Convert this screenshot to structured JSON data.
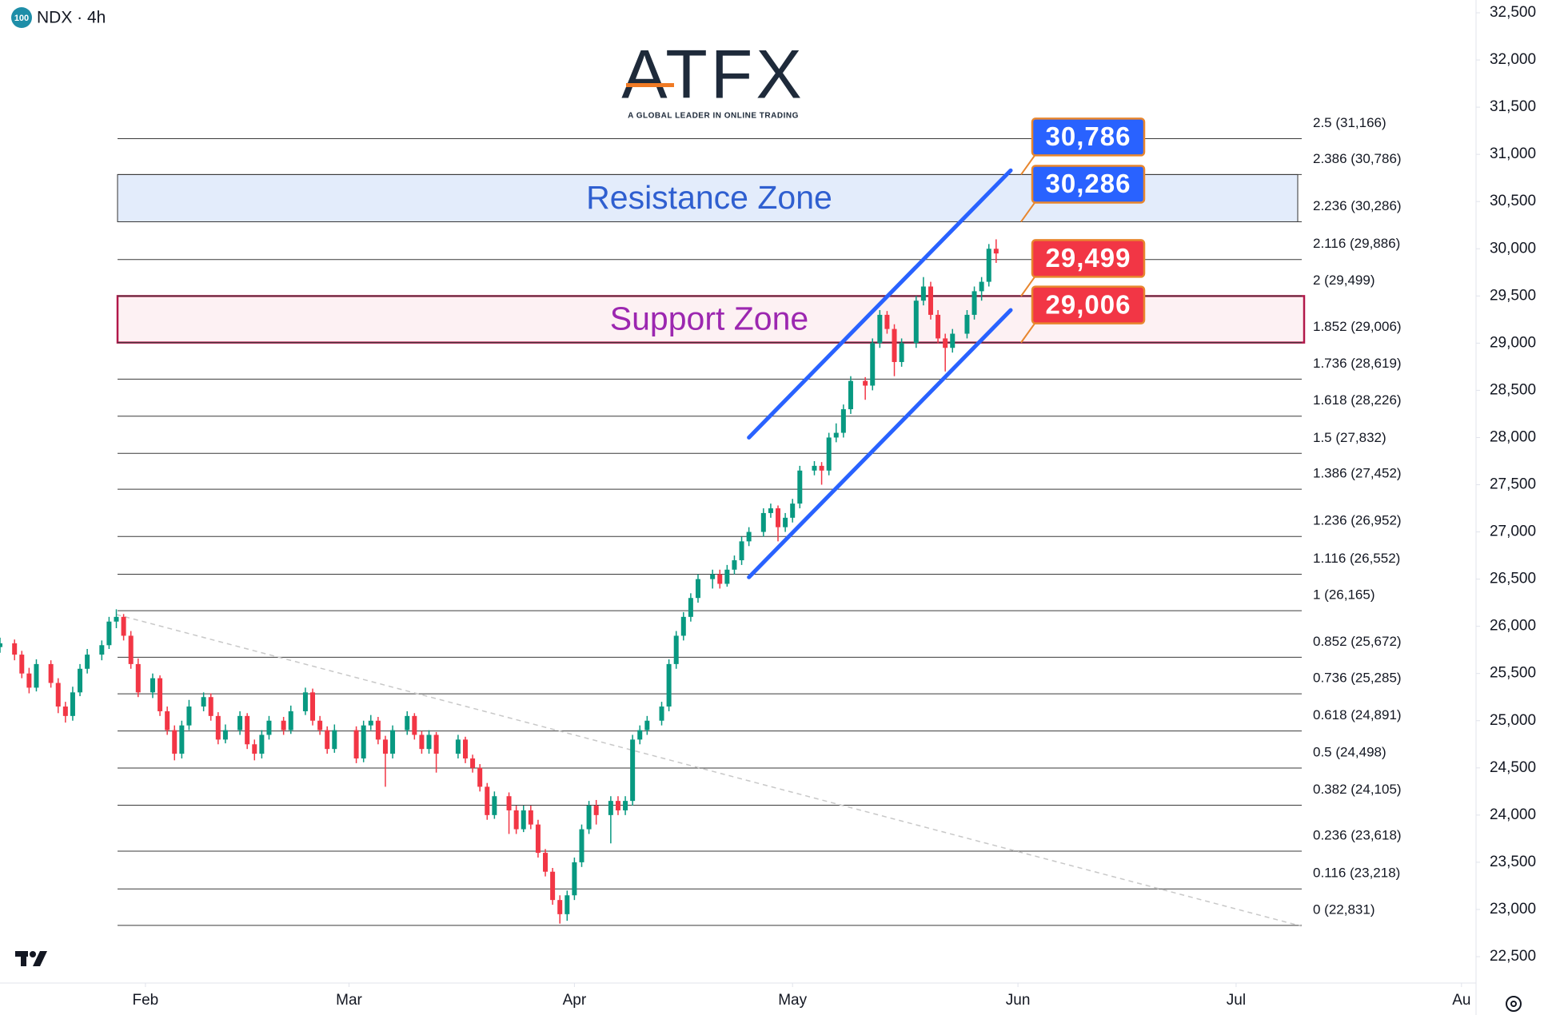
{
  "chart_data": {
    "type": "candlestick",
    "symbol_badge": "100",
    "title": "NDX · 4h",
    "logo": "ATFX",
    "logo_tagline": "A GLOBAL LEADER IN ONLINE TRADING",
    "up_color": "#089981",
    "down_color": "#f23645",
    "xlim": [
      12,
      215
    ],
    "xticks": [
      {
        "value": 32,
        "label": "Feb"
      },
      {
        "value": 60,
        "label": "Mar"
      },
      {
        "value": 91,
        "label": "Apr"
      },
      {
        "value": 121,
        "label": "May"
      },
      {
        "value": 152,
        "label": "Jun"
      },
      {
        "value": 182,
        "label": "Jul"
      },
      {
        "value": 213,
        "label": "Au"
      }
    ],
    "ylim": [
      22500,
      32500
    ],
    "yticks": [
      {
        "value": 22500,
        "label": "22,500"
      },
      {
        "value": 23000,
        "label": "23,000"
      },
      {
        "value": 23500,
        "label": "23,500"
      },
      {
        "value": 24000,
        "label": "24,000"
      },
      {
        "value": 24500,
        "label": "24,500"
      },
      {
        "value": 25000,
        "label": "25,000"
      },
      {
        "value": 25500,
        "label": "25,500"
      },
      {
        "value": 26000,
        "label": "26,000"
      },
      {
        "value": 26500,
        "label": "26,500"
      },
      {
        "value": 27000,
        "label": "27,000"
      },
      {
        "value": 27500,
        "label": "27,500"
      },
      {
        "value": 28000,
        "label": "28,000"
      },
      {
        "value": 28500,
        "label": "28,500"
      },
      {
        "value": 29000,
        "label": "29,000"
      },
      {
        "value": 29500,
        "label": "29,500"
      },
      {
        "value": 30000,
        "label": "30,000"
      },
      {
        "value": 30500,
        "label": "30,500"
      },
      {
        "value": 31000,
        "label": "31,000"
      },
      {
        "value": 31500,
        "label": "31,500"
      },
      {
        "value": 32000,
        "label": "32,000"
      },
      {
        "value": 32500,
        "label": "32,500"
      }
    ],
    "x": [
      12,
      14,
      15,
      16,
      17,
      19,
      20,
      21,
      22,
      23,
      24,
      26,
      27,
      28,
      29,
      30,
      31,
      33,
      34,
      35,
      36,
      37,
      38,
      40,
      41,
      42,
      43,
      45,
      46,
      47,
      48,
      49,
      51,
      52,
      54,
      55,
      56,
      57,
      58,
      61,
      62,
      63,
      64,
      65,
      66,
      68,
      69,
      70,
      71,
      72,
      75,
      76,
      77,
      78,
      79,
      80,
      82,
      83,
      84,
      85,
      86,
      87,
      88,
      89,
      90,
      91,
      92,
      93,
      94,
      96,
      97,
      98,
      99,
      100,
      101,
      103,
      104,
      105,
      106,
      107,
      108,
      110,
      111,
      112,
      113,
      114,
      115,
      117,
      118,
      119,
      120,
      121,
      122,
      124,
      125,
      126,
      127,
      128,
      129,
      131,
      132,
      133,
      134,
      135,
      136,
      138,
      139,
      140,
      141,
      142,
      143,
      145,
      146,
      147,
      148,
      149
    ],
    "open": [
      25780,
      25820,
      25700,
      25500,
      25350,
      25600,
      25400,
      25150,
      25050,
      25300,
      25550,
      25700,
      25800,
      26050,
      26100,
      25900,
      25600,
      25300,
      25450,
      25100,
      24900,
      24650,
      24950,
      25150,
      25250,
      25050,
      24800,
      24900,
      25050,
      24750,
      24650,
      24850,
      25000,
      24900,
      25100,
      25300,
      25000,
      24900,
      24700,
      24900,
      24600,
      24950,
      25000,
      24800,
      24650,
      24900,
      25050,
      24850,
      24700,
      24850,
      24650,
      24800,
      24600,
      24500,
      24300,
      24000,
      24200,
      24050,
      23850,
      24050,
      23900,
      23600,
      23400,
      23100,
      22950,
      23150,
      23500,
      23850,
      24100,
      24000,
      24150,
      24050,
      24150,
      24800,
      24900,
      25000,
      25150,
      25600,
      25900,
      26100,
      26300,
      26500,
      26550,
      26450,
      26600,
      26700,
      26900,
      27000,
      27200,
      27250,
      27050,
      27150,
      27300,
      27650,
      27700,
      27650,
      28000,
      28050,
      28300,
      28600,
      28550,
      29000,
      29300,
      29150,
      28800,
      29000,
      29450,
      29600,
      29300,
      29050,
      28950,
      29100,
      29300,
      29550,
      29650,
      30000
    ],
    "high": [
      25880,
      25860,
      25740,
      25560,
      25650,
      25640,
      25450,
      25200,
      25360,
      25600,
      25760,
      25850,
      26100,
      26180,
      26130,
      25950,
      25660,
      25500,
      25480,
      25150,
      24950,
      25000,
      25220,
      25300,
      25290,
      25090,
      24960,
      25100,
      25080,
      24800,
      24900,
      25050,
      25040,
      25160,
      25350,
      25340,
      25050,
      24940,
      24960,
      24940,
      25000,
      25060,
      25040,
      24840,
      24950,
      25100,
      25080,
      24890,
      24900,
      24880,
      24850,
      24830,
      24640,
      24540,
      24340,
      24250,
      24240,
      24100,
      24100,
      24100,
      23950,
      23640,
      23440,
      23150,
      23200,
      23550,
      23900,
      24150,
      24160,
      24200,
      24200,
      24200,
      24850,
      24950,
      25050,
      25200,
      25650,
      25950,
      26150,
      26350,
      26550,
      26600,
      26600,
      26650,
      26750,
      26950,
      27050,
      27250,
      27300,
      27280,
      27200,
      27350,
      27700,
      27750,
      27740,
      28050,
      28150,
      28350,
      28650,
      28640,
      29050,
      29350,
      29340,
      29200,
      29050,
      29500,
      29700,
      29650,
      29350,
      29100,
      29150,
      29350,
      29600,
      29700,
      30050,
      30100
    ],
    "low": [
      25720,
      25640,
      25450,
      25290,
      25310,
      25350,
      25080,
      24980,
      25000,
      25260,
      25500,
      25640,
      25760,
      25980,
      25850,
      25550,
      25250,
      25240,
      25050,
      24850,
      24580,
      24600,
      24900,
      25100,
      25000,
      24750,
      24760,
      24850,
      24700,
      24580,
      24600,
      24800,
      24850,
      24860,
      25060,
      24950,
      24850,
      24650,
      24660,
      24550,
      24560,
      24900,
      24750,
      24300,
      24600,
      24850,
      24800,
      24650,
      24650,
      24450,
      24600,
      24550,
      24450,
      24250,
      23950,
      23960,
      23800,
      23800,
      23820,
      23850,
      23550,
      23350,
      23050,
      22850,
      22880,
      23100,
      23450,
      23800,
      23900,
      23700,
      24000,
      24000,
      24100,
      24750,
      24850,
      24950,
      25100,
      25550,
      25850,
      26050,
      26250,
      26400,
      26400,
      26420,
      26550,
      26650,
      26850,
      26950,
      27150,
      26900,
      27000,
      27100,
      27250,
      27600,
      27500,
      27600,
      27950,
      28000,
      28250,
      28400,
      28500,
      28950,
      29100,
      28650,
      28750,
      28950,
      29400,
      29250,
      29000,
      28700,
      28900,
      29050,
      29250,
      29450,
      29600,
      29850
    ],
    "close": [
      25820,
      25700,
      25500,
      25350,
      25600,
      25400,
      25150,
      25050,
      25300,
      25550,
      25700,
      25800,
      26050,
      26100,
      25900,
      25600,
      25300,
      25450,
      25100,
      24900,
      24650,
      24950,
      25150,
      25250,
      25050,
      24800,
      24900,
      25050,
      24750,
      24650,
      24850,
      25000,
      24900,
      25100,
      25300,
      25000,
      24900,
      24700,
      24900,
      24600,
      24950,
      25000,
      24800,
      24650,
      24900,
      25050,
      24850,
      24700,
      24850,
      24650,
      24800,
      24600,
      24500,
      24300,
      24000,
      24200,
      24050,
      23850,
      24050,
      23900,
      23600,
      23400,
      23100,
      22950,
      23150,
      23500,
      23850,
      24100,
      24000,
      24150,
      24050,
      24150,
      24800,
      24900,
      25000,
      25150,
      25600,
      25900,
      26100,
      26300,
      26500,
      26550,
      26450,
      26600,
      26700,
      26900,
      27000,
      27200,
      27250,
      27050,
      27150,
      27300,
      27650,
      27700,
      27650,
      28000,
      28050,
      28300,
      28600,
      28550,
      29000,
      29300,
      29150,
      28800,
      29000,
      29450,
      29600,
      29300,
      29050,
      28950,
      29100,
      29300,
      29550,
      29650,
      30000,
      29950
    ],
    "fib_levels": [
      {
        "value": 31166,
        "label": "2.5 (31,166)"
      },
      {
        "value": 30786,
        "label": "2.386 (30,786)"
      },
      {
        "value": 30286,
        "label": "2.236 (30,286)"
      },
      {
        "value": 29886,
        "label": "2.116 (29,886)"
      },
      {
        "value": 29499,
        "label": "2 (29,499)"
      },
      {
        "value": 29006,
        "label": "1.852 (29,006)"
      },
      {
        "value": 28619,
        "label": "1.736 (28,619)"
      },
      {
        "value": 28226,
        "label": "1.618 (28,226)"
      },
      {
        "value": 27832,
        "label": "1.5 (27,832)"
      },
      {
        "value": 27452,
        "label": "1.386 (27,452)"
      },
      {
        "value": 26952,
        "label": "1.236 (26,952)"
      },
      {
        "value": 26552,
        "label": "1.116 (26,552)"
      },
      {
        "value": 26165,
        "label": "1 (26,165)"
      },
      {
        "value": 25672,
        "label": "0.852 (25,672)"
      },
      {
        "value": 25285,
        "label": "0.736 (25,285)"
      },
      {
        "value": 24891,
        "label": "0.618 (24,891)"
      },
      {
        "value": 24498,
        "label": "0.5 (24,498)"
      },
      {
        "value": 24105,
        "label": "0.382 (24,105)"
      },
      {
        "value": 23618,
        "label": "0.236 (23,618)"
      },
      {
        "value": 23218,
        "label": "0.116 (23,218)"
      },
      {
        "value": 22831,
        "label": "0 (22,831)"
      }
    ],
    "zones": [
      {
        "label": "Resistance Zone",
        "range": [
          30286,
          30786
        ],
        "color": "#2f5fd0",
        "fill": "#e3ecfb",
        "border": "#333333"
      },
      {
        "label": "Support Zone",
        "range": [
          29006,
          29499
        ],
        "color": "#9c27b0",
        "fill": "#fdf1f3",
        "border": "#b2184a"
      }
    ],
    "channel": [
      {
        "x": [
          115,
          151
        ],
        "values": [
          28000,
          30830
        ],
        "color": "#2962ff"
      },
      {
        "x": [
          115,
          151
        ],
        "values": [
          26520,
          29350
        ],
        "color": "#2962ff"
      }
    ],
    "trendline": {
      "x": [
        28,
        191
      ],
      "values": [
        26125,
        22823
      ],
      "color": "#c8c8c8"
    },
    "price_tags": [
      {
        "value": 30786,
        "label": "30,786",
        "color": "#2962ff"
      },
      {
        "value": 30286,
        "label": "30,286",
        "color": "#2962ff"
      },
      {
        "value": 29499,
        "label": "29,499",
        "color": "#f23645"
      },
      {
        "value": 29006,
        "label": "29,006",
        "color": "#f23645"
      }
    ]
  }
}
